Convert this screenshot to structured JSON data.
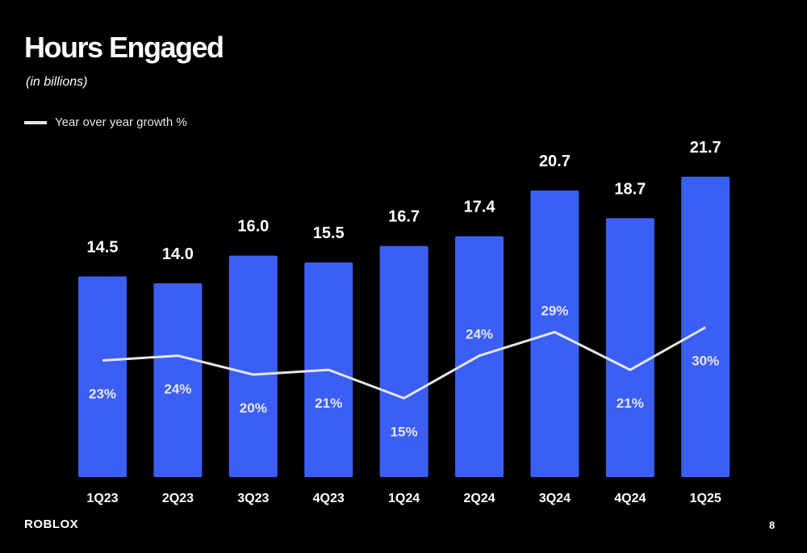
{
  "slide": {
    "title": "Hours Engaged",
    "subtitle": "(in billions)",
    "logo_text": "ROBLOX",
    "page_number": "8"
  },
  "colors": {
    "background": "#000000",
    "bar": "#3b5ff5",
    "line": "#e6e6e6",
    "text": "#ffffff"
  },
  "chart_data": {
    "type": "bar",
    "categories": [
      "1Q23",
      "2Q23",
      "3Q23",
      "4Q23",
      "1Q24",
      "2Q24",
      "3Q24",
      "4Q24",
      "1Q25"
    ],
    "series": [
      {
        "type": "bar",
        "values": [
          14.5,
          14.0,
          16.0,
          15.5,
          16.7,
          17.4,
          20.7,
          18.7,
          21.7
        ],
        "labels": [
          "14.5",
          "14.0",
          "16.0",
          "15.5",
          "16.7",
          "17.4",
          "20.7",
          "18.7",
          "21.7"
        ]
      },
      {
        "name": "Year over year growth %",
        "type": "line",
        "values": [
          23,
          24,
          20,
          21,
          15,
          24,
          29,
          21,
          30
        ],
        "labels": [
          "23%",
          "24%",
          "20%",
          "21%",
          "15%",
          "24%",
          "29%",
          "21%",
          "30%"
        ]
      }
    ],
    "legend": "top-left",
    "grid": false
  }
}
